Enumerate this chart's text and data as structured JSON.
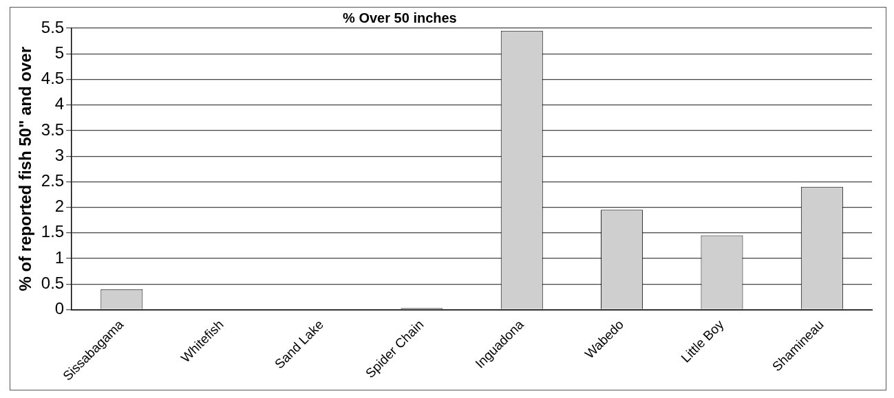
{
  "chart_data": {
    "type": "bar",
    "title": "% Over 50 inches",
    "ylabel": "% of reported fish 50\" and over",
    "categories": [
      "Sissabagama",
      "Whitefish",
      "Sand Lake",
      "Spider Chain",
      "Inguadona",
      "Wabedo",
      "Little Boy",
      "Shamineau"
    ],
    "values": [
      0.4,
      0,
      0,
      0.03,
      5.45,
      1.95,
      1.45,
      2.4
    ],
    "color": "#cfcfcf",
    "ylim": [
      0,
      5.5
    ],
    "yticks": [
      0,
      0.5,
      1,
      1.5,
      2,
      2.5,
      3,
      3.5,
      4,
      4.5,
      5,
      5.5
    ],
    "grid": "y",
    "legend": false
  }
}
